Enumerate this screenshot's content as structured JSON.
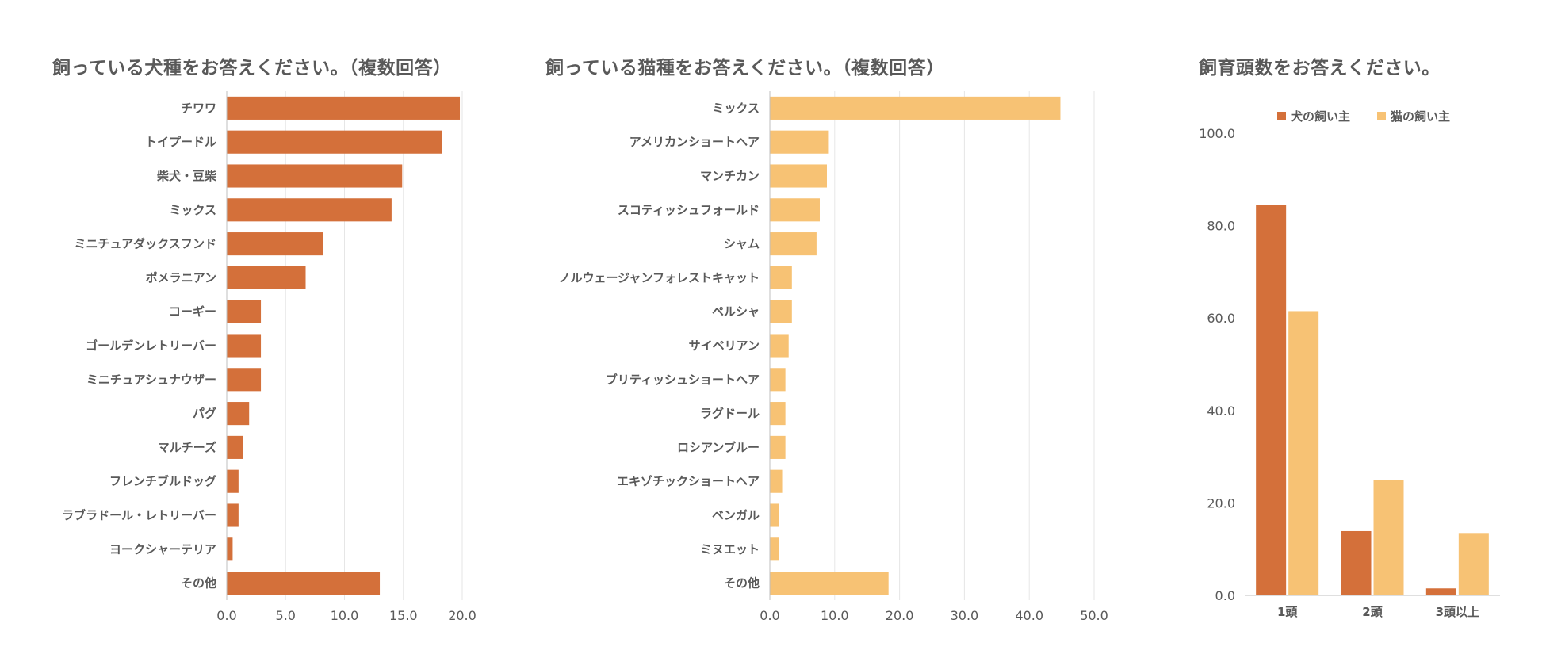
{
  "colors": {
    "dog": "#D4703A",
    "cat": "#F7C274",
    "grid": "#E6E6E6",
    "axis": "#BFBFBF",
    "text": "#595959"
  },
  "chart_data": [
    {
      "type": "bar",
      "orientation": "horizontal",
      "title": "飼っている犬種をお答えください。（複数回答）",
      "categories": [
        "チワワ",
        "トイプードル",
        "柴犬・豆柴",
        "ミックス",
        "ミニチュアダックスフンド",
        "ポメラニアン",
        "コーギー",
        "ゴールデンレトリーバー",
        "ミニチュアシュナウザー",
        "パグ",
        "マルチーズ",
        "フレンチブルドッグ",
        "ラブラドール・レトリーバー",
        "ヨークシャーテリア",
        "その他"
      ],
      "values": [
        19.8,
        18.3,
        14.9,
        14.0,
        8.2,
        6.7,
        2.9,
        2.9,
        2.9,
        1.9,
        1.4,
        1.0,
        1.0,
        0.5,
        13.0
      ],
      "xlim": [
        0,
        20
      ],
      "ticks": [
        "0.0",
        "5.0",
        "10.0",
        "15.0",
        "20.0"
      ],
      "tick_values": [
        0,
        5,
        10,
        15,
        20
      ],
      "grid": true
    },
    {
      "type": "bar",
      "orientation": "horizontal",
      "title": "飼っている猫種をお答えください。（複数回答）",
      "categories": [
        "ミックス",
        "アメリカンショートヘア",
        "マンチカン",
        "スコティッシュフォールド",
        "シャム",
        "ノルウェージャンフォレストキャット",
        "ペルシャ",
        "サイベリアン",
        "ブリティッシュショートヘア",
        "ラグドール",
        "ロシアンブルー",
        "エキゾチックショートヘア",
        "ベンガル",
        "ミヌエット",
        "その他"
      ],
      "values": [
        44.8,
        9.1,
        8.8,
        7.7,
        7.2,
        3.4,
        3.4,
        2.9,
        2.4,
        2.4,
        2.4,
        1.9,
        1.4,
        1.4,
        18.3
      ],
      "xlim": [
        0,
        50
      ],
      "ticks": [
        "0.0",
        "10.0",
        "20.0",
        "30.0",
        "40.0",
        "50.0"
      ],
      "tick_values": [
        0,
        10,
        20,
        30,
        40,
        50
      ],
      "grid": true
    },
    {
      "type": "bar",
      "orientation": "vertical",
      "title": "飼育頭数をお答えください。",
      "categories": [
        "1頭",
        "2頭",
        "3頭以上"
      ],
      "series": [
        {
          "name": "犬の飼い主",
          "values": [
            84.5,
            13.9,
            1.5
          ]
        },
        {
          "name": "猫の飼い主",
          "values": [
            61.5,
            25.0,
            13.5
          ]
        }
      ],
      "ylim": [
        0,
        100
      ],
      "ticks": [
        "0.0",
        "20.0",
        "40.0",
        "60.0",
        "80.0",
        "100.0"
      ],
      "tick_values": [
        0,
        20,
        40,
        60,
        80,
        100
      ],
      "legend": "top"
    }
  ]
}
